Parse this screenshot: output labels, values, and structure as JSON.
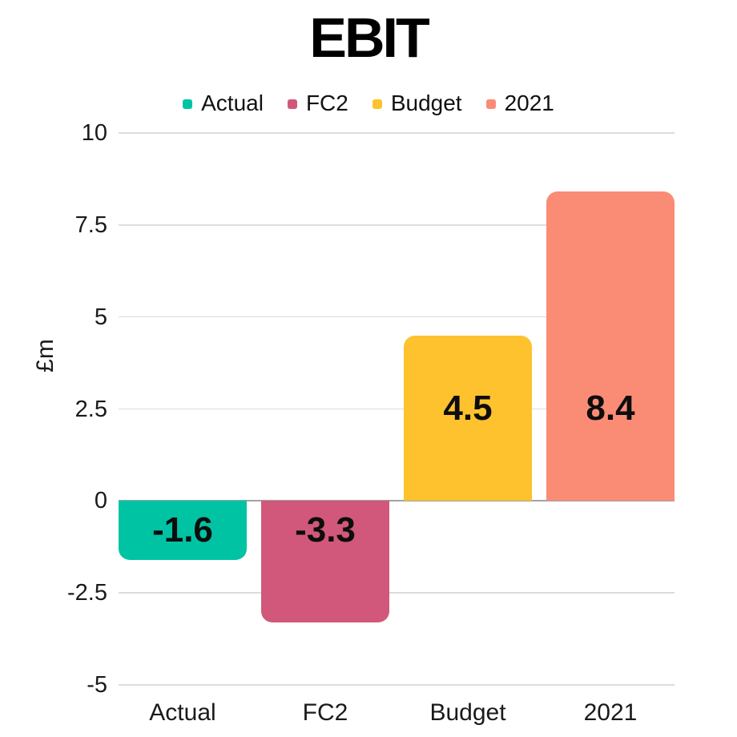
{
  "title": "EBIT",
  "chart_data": {
    "type": "bar",
    "title": "EBIT",
    "xlabel": "",
    "ylabel": "£m",
    "categories": [
      "Actual",
      "FC2",
      "Budget",
      "2021"
    ],
    "values": [
      -1.6,
      -3.3,
      4.5,
      8.4
    ],
    "value_labels": [
      "-1.6",
      "-3.3",
      "4.5",
      "8.4"
    ],
    "colors": [
      "#00C3A4",
      "#D1587A",
      "#FDC22D",
      "#FA8C75"
    ],
    "ylim": [
      -5,
      10
    ],
    "ytick_values": [
      10,
      7.5,
      5,
      2.5,
      0,
      -2.5,
      -5
    ],
    "ytick_labels": [
      "10",
      "7.5",
      "5",
      "2.5",
      "0",
      "-2.5",
      "-5"
    ],
    "grid": true,
    "legend_position": "top",
    "legend_entries": [
      "Actual",
      "FC2",
      "Budget",
      "2021"
    ]
  },
  "style_colors": {
    "gridline": "#dcdcdc",
    "zero_line": "#a2a2a2",
    "text": "#1a1a1a",
    "title_text": "#000000"
  }
}
